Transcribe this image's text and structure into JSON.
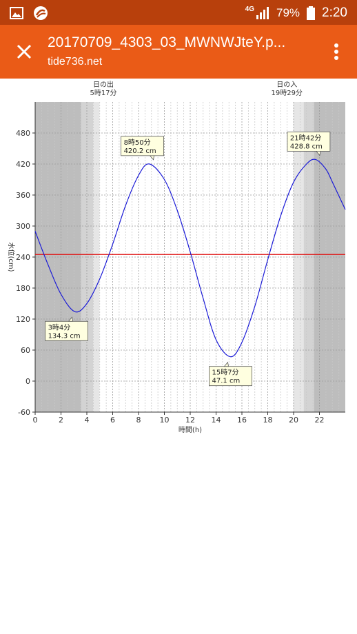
{
  "status_bar": {
    "network": "4G",
    "battery": "79%",
    "time": "2:20",
    "icons": [
      "image-icon",
      "app-icon",
      "signal-icon",
      "battery-icon"
    ]
  },
  "app_bar": {
    "title": "20170709_4303_03_MWNWJteY.p...",
    "subtitle": "tide736.net",
    "colors": {
      "status": "#b8400c",
      "bar": "#ea5b17"
    }
  },
  "chart_data": {
    "type": "line",
    "xlabel": "時間(h)",
    "ylabel": "水位(cm)",
    "xlim": [
      0,
      24
    ],
    "ylim": [
      -60,
      540
    ],
    "x_ticks": [
      0,
      2,
      4,
      6,
      8,
      10,
      12,
      14,
      16,
      18,
      20,
      22
    ],
    "y_ticks": [
      -60,
      0,
      60,
      120,
      180,
      240,
      300,
      360,
      420,
      480
    ],
    "grid": true,
    "reference_line": 245,
    "series": [
      {
        "color": "#1a1ad6",
        "x": [
          0,
          1,
          2,
          3.07,
          4,
          5,
          6,
          7,
          8,
          8.83,
          10,
          11,
          12,
          13,
          14,
          15.12,
          16,
          17,
          18,
          19,
          20,
          21,
          21.7,
          22.5,
          23,
          24
        ],
        "y": [
          290,
          225,
          168,
          134.3,
          150,
          198,
          265,
          340,
          398,
          420.2,
          390,
          330,
          250,
          160,
          80,
          47.1,
          75,
          145,
          235,
          320,
          385,
          420,
          428.8,
          410,
          385,
          332
        ]
      }
    ],
    "annotations": [
      {
        "time": "3時4分",
        "value": "134.3 cm",
        "x": 3.07,
        "y": 134.3
      },
      {
        "time": "8時50分",
        "value": "420.2 cm",
        "x": 8.83,
        "y": 420.2
      },
      {
        "time": "15時7分",
        "value": "47.1 cm",
        "x": 15.12,
        "y": 47.1
      },
      {
        "time": "21時42分",
        "value": "428.8 cm",
        "x": 21.7,
        "y": 428.8
      }
    ],
    "sunrise": {
      "label": "日の出",
      "time": "5時17分",
      "hour": 5.28
    },
    "sunset": {
      "label": "日の入",
      "time": "19時29分",
      "hour": 19.48
    }
  }
}
